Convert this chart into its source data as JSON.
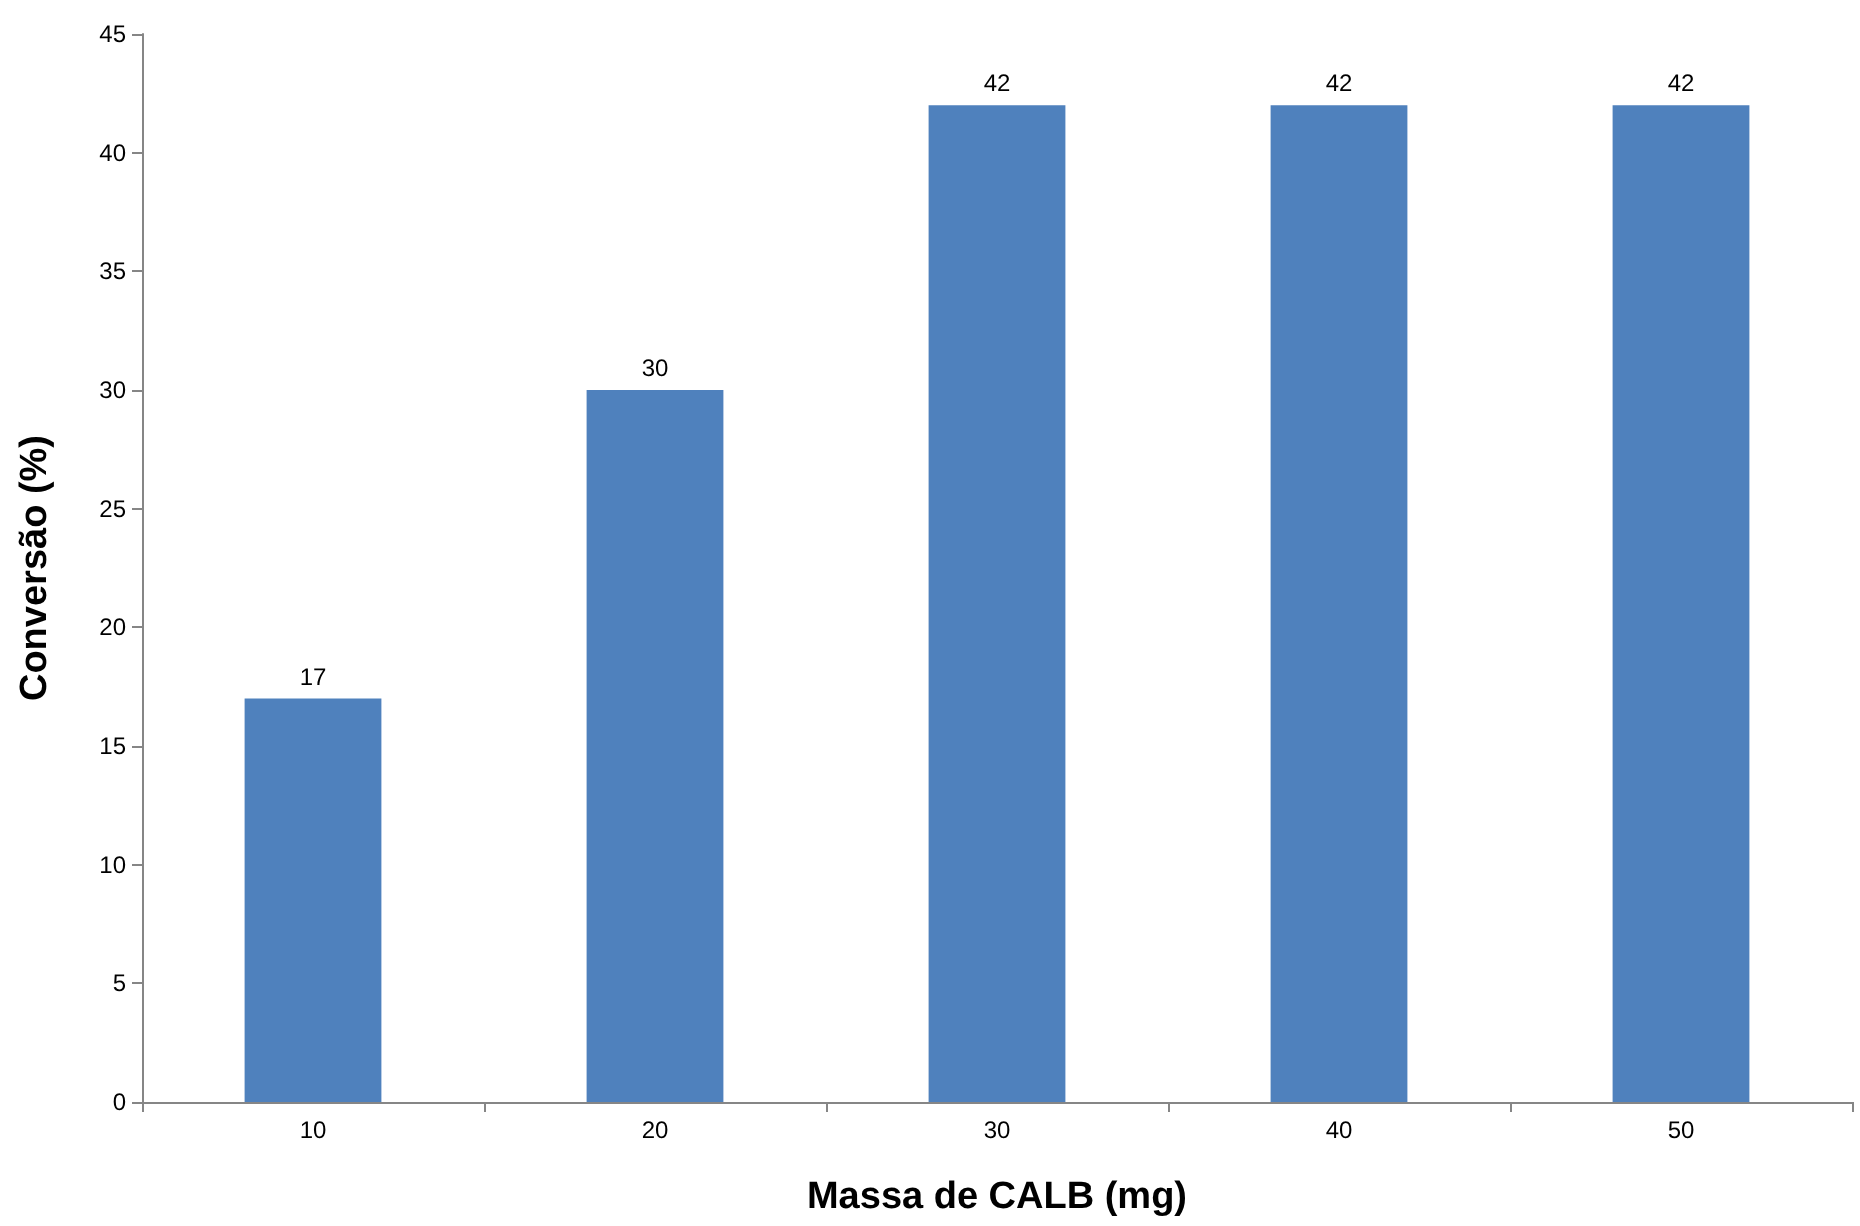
{
  "chart_data": {
    "type": "bar",
    "xlabel": "Massa de CALB (mg)",
    "ylabel": "Conversão (%)",
    "categories": [
      "10",
      "20",
      "30",
      "40",
      "50"
    ],
    "values": [
      17,
      30,
      42,
      42,
      42
    ],
    "color": "#4f81bd",
    "ylim": [
      0,
      45
    ],
    "yticks": [
      0,
      5,
      10,
      15,
      20,
      25,
      30,
      35,
      40,
      45
    ],
    "grid": false,
    "data_labels": true
  }
}
